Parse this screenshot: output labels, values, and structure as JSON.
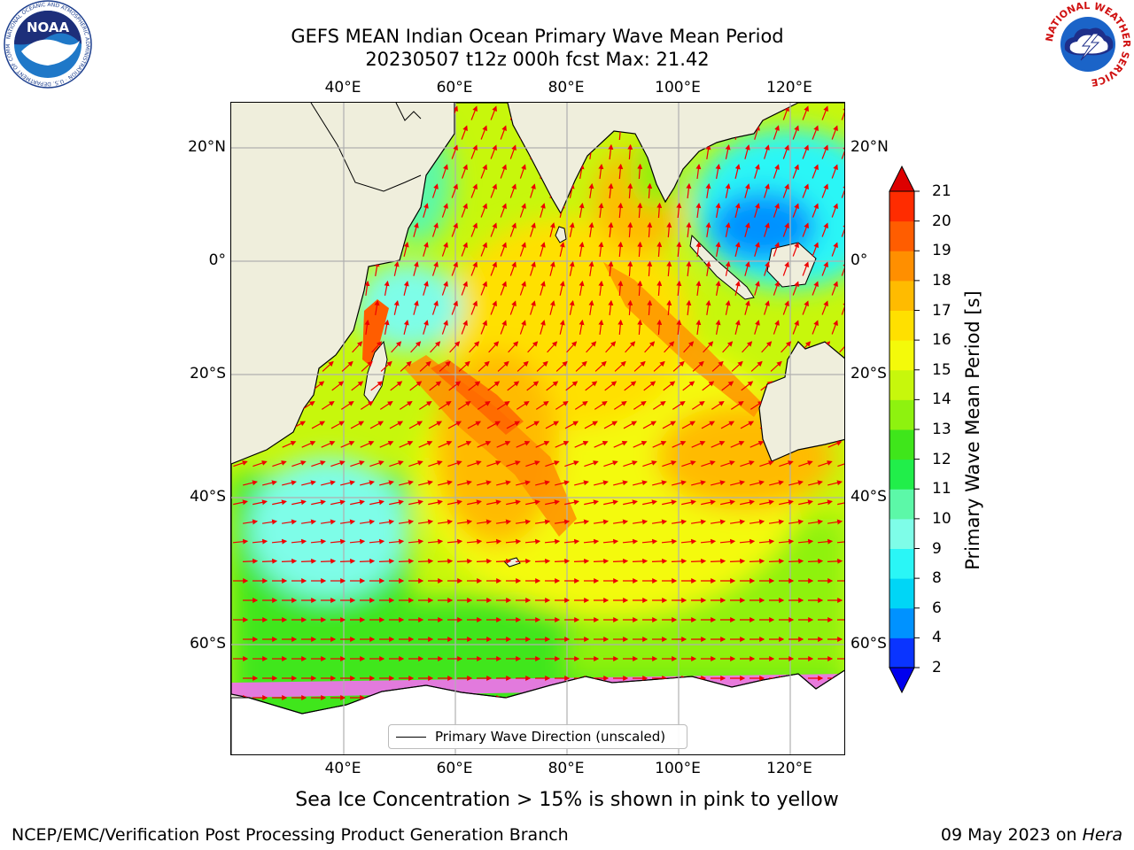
{
  "title": {
    "line1": "GEFS MEAN Indian Ocean Primary Wave Mean Period",
    "line2": "20230507 t12z 000h fcst   Max: 21.42"
  },
  "map": {
    "lon_range": [
      20,
      130
    ],
    "lat_range": [
      -74,
      28
    ],
    "lon_ticks": [
      {
        "value": 40,
        "label": "40°E"
      },
      {
        "value": 60,
        "label": "60°E"
      },
      {
        "value": 80,
        "label": "80°E"
      },
      {
        "value": 100,
        "label": "100°E"
      },
      {
        "value": 120,
        "label": "120°E"
      }
    ],
    "lat_ticks": [
      {
        "value": 20,
        "label": "20°N"
      },
      {
        "value": 0,
        "label": "0°"
      },
      {
        "value": -20,
        "label": "20°S"
      },
      {
        "value": -40,
        "label": "40°S"
      },
      {
        "value": -60,
        "label": "60°S"
      }
    ],
    "grid": true,
    "land_color": "#efeedc",
    "arrow_color": "#ee0000",
    "legend_label": "Primary Wave Direction (unscaled)",
    "legend_position": "bottom-center"
  },
  "colorbar": {
    "label": "Primary Wave Mean Period [s]",
    "levels": [
      {
        "value": 2,
        "label": "2",
        "color": "#0a34ff"
      },
      {
        "value": 4,
        "label": "4",
        "color": "#0092ff"
      },
      {
        "value": 6,
        "label": "6",
        "color": "#00d6f6"
      },
      {
        "value": 8,
        "label": "8",
        "color": "#2af6f6"
      },
      {
        "value": 9,
        "label": "9",
        "color": "#7efde8"
      },
      {
        "value": 10,
        "label": "10",
        "color": "#5cf8a8"
      },
      {
        "value": 11,
        "label": "11",
        "color": "#21ee4a"
      },
      {
        "value": 12,
        "label": "12",
        "color": "#3fe61b"
      },
      {
        "value": 13,
        "label": "13",
        "color": "#8ef20f"
      },
      {
        "value": 14,
        "label": "14",
        "color": "#c7f70c"
      },
      {
        "value": 15,
        "label": "15",
        "color": "#f4fa0a"
      },
      {
        "value": 16,
        "label": "16",
        "color": "#ffe000"
      },
      {
        "value": 17,
        "label": "17",
        "color": "#ffbb00"
      },
      {
        "value": 18,
        "label": "18",
        "color": "#ff8f00"
      },
      {
        "value": 19,
        "label": "19",
        "color": "#ff5d00"
      },
      {
        "value": 20,
        "label": "20",
        "color": "#ff2c00"
      },
      {
        "value": 21,
        "label": "21",
        "color": "#e00000"
      }
    ],
    "under_color": "#0000ee",
    "over_color": "#dd0000"
  },
  "note": "Sea Ice Concentration > 15% is shown in pink to yellow",
  "footer": {
    "left": "NCEP/EMC/Verification Post Processing Product Generation Branch",
    "right_prefix": "09 May 2023 on ",
    "right_machine": "Hera"
  },
  "logos": {
    "noaa_text": "NOAA",
    "noaa_ring_text": "NATIONAL OCEANIC AND ATMOSPHERIC ADMINISTRATION · U.S. DEPARTMENT OF COMMERCE",
    "nws_ring_text": "NATIONAL WEATHER SERVICE"
  }
}
